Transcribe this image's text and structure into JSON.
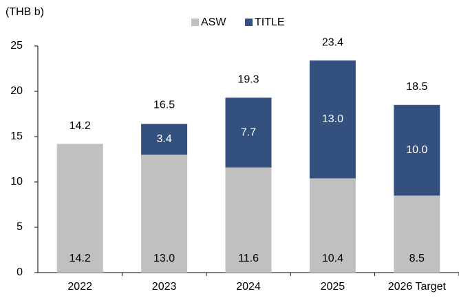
{
  "chart_data": {
    "type": "stacked_bar",
    "y_axis_label": "(THB b)",
    "categories": [
      "2022",
      "2023",
      "2024",
      "2025",
      "2026 Target"
    ],
    "series": [
      {
        "name": "ASW",
        "color": "#c0c0c0",
        "values": [
          14.2,
          13.0,
          11.6,
          10.4,
          8.5
        ],
        "value_labels": [
          "14.2",
          "13.0",
          "11.6",
          "10.4",
          "8.5"
        ]
      },
      {
        "name": "TITLE",
        "color": "#34507f",
        "values": [
          null,
          3.4,
          7.7,
          13.0,
          10.0
        ],
        "value_labels": [
          null,
          "3.4",
          "7.7",
          "13.0",
          "10.0"
        ]
      }
    ],
    "totals": [
      14.2,
      16.5,
      19.3,
      23.4,
      18.5
    ],
    "ylim": [
      0,
      25
    ],
    "yticks": [
      0,
      5,
      10,
      15,
      20,
      25
    ],
    "grid": false,
    "legend": "top"
  }
}
